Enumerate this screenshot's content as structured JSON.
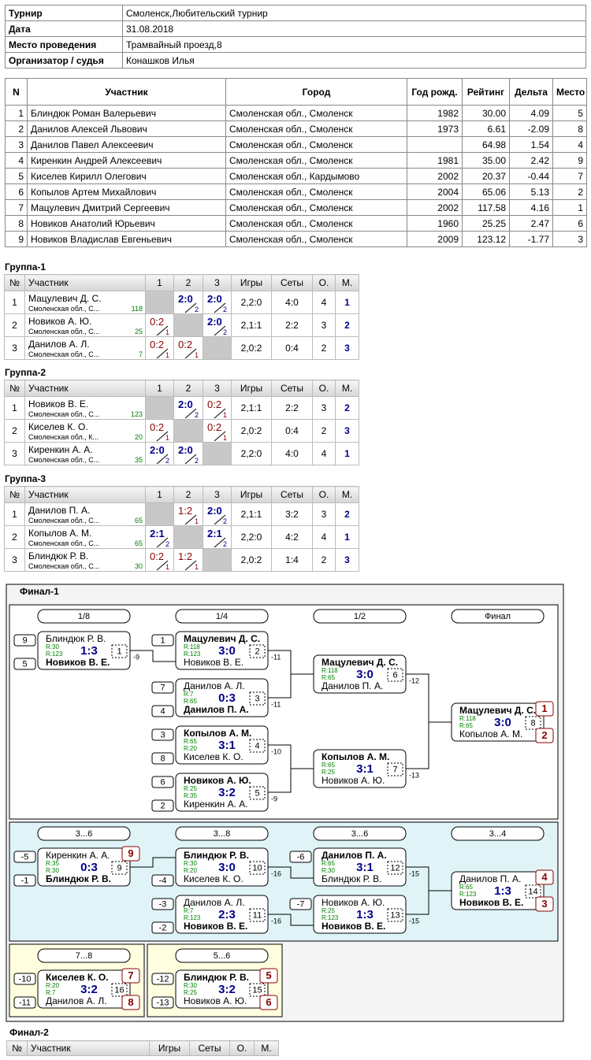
{
  "info": [
    [
      "Турнир",
      "Смоленск,Любительский турнир"
    ],
    [
      "Дата",
      "31.08.2018"
    ],
    [
      "Место проведения",
      "Трамвайный проезд,8"
    ],
    [
      "Организатор / судья",
      "Конашков Илья"
    ]
  ],
  "participants": {
    "headers": [
      "N",
      "Участник",
      "Город",
      "Год рожд.",
      "Рейтинг",
      "Дельта",
      "Место"
    ],
    "rows": [
      [
        1,
        "Блиндюк Роман Валерьевич",
        "Смоленская обл., Смоленск",
        1982,
        "30.00",
        "4.09",
        5
      ],
      [
        2,
        "Данилов Алексей Львович",
        "Смоленская обл., Смоленск",
        1973,
        "6.61",
        "-2.09",
        8
      ],
      [
        3,
        "Данилов Павел Алексеевич",
        "Смоленская обл., Смоленск",
        null,
        "64.98",
        "1.54",
        4
      ],
      [
        4,
        "Киренкин Андрей Алексеевич",
        "Смоленская обл., Смоленск",
        1981,
        "35.00",
        "2.42",
        9
      ],
      [
        5,
        "Киселев Кирилл Олегович",
        "Смоленская обл., Кардымово",
        2002,
        "20.37",
        "-0.44",
        7
      ],
      [
        6,
        "Копылов Артем Михайлович",
        "Смоленская обл., Смоленск",
        2004,
        "65.06",
        "5.13",
        2
      ],
      [
        7,
        "Мацулевич Дмитрий Сергеевич",
        "Смоленская обл., Смоленск",
        2002,
        "117.58",
        "4.16",
        1
      ],
      [
        8,
        "Новиков Анатолий Юрьевич",
        "Смоленская обл., Смоленск",
        1960,
        "25.25",
        "2.47",
        6
      ],
      [
        9,
        "Новиков Владислав Евгеньевич",
        "Смоленская обл., Смоленск",
        2009,
        "123.12",
        "-1.77",
        3
      ]
    ]
  },
  "groups": [
    {
      "title": "Группа-1",
      "headers": [
        "№",
        "Участник",
        "1",
        "2",
        "3",
        "Игры",
        "Сеты",
        "О.",
        "М."
      ],
      "rows": [
        {
          "n": 1,
          "name": "Мацулевич Д. С.",
          "city": "Смоленская обл., С...",
          "rating": 118,
          "cells": [
            null,
            {
              "score": "2:0",
              "pts": 2
            },
            {
              "score": "2:0",
              "pts": 2
            }
          ],
          "games": "2,2:0",
          "sets": "4:0",
          "points": 4,
          "place": 1
        },
        {
          "n": 2,
          "name": "Новиков А. Ю.",
          "city": "Смоленская обл., С...",
          "rating": 25,
          "cells": [
            {
              "score": "0:2",
              "pts": 1
            },
            null,
            {
              "score": "2:0",
              "pts": 2
            }
          ],
          "games": "2,1:1",
          "sets": "2:2",
          "points": 3,
          "place": 2
        },
        {
          "n": 3,
          "name": "Данилов А. Л.",
          "city": "Смоленская обл., С...",
          "rating": 7,
          "cells": [
            {
              "score": "0:2",
              "pts": 1
            },
            {
              "score": "0:2",
              "pts": 1
            },
            null
          ],
          "games": "2,0:2",
          "sets": "0:4",
          "points": 2,
          "place": 3
        }
      ]
    },
    {
      "title": "Группа-2",
      "headers": [
        "№",
        "Участник",
        "1",
        "2",
        "3",
        "Игры",
        "Сеты",
        "О.",
        "М."
      ],
      "rows": [
        {
          "n": 1,
          "name": "Новиков В. Е.",
          "city": "Смоленская обл., С...",
          "rating": 123,
          "cells": [
            null,
            {
              "score": "2:0",
              "pts": 2
            },
            {
              "score": "0:2",
              "pts": 1
            }
          ],
          "games": "2,1:1",
          "sets": "2:2",
          "points": 3,
          "place": 2
        },
        {
          "n": 2,
          "name": "Киселев К. О.",
          "city": "Смоленская обл., К...",
          "rating": 20,
          "cells": [
            {
              "score": "0:2",
              "pts": 1
            },
            null,
            {
              "score": "0:2",
              "pts": 1
            }
          ],
          "games": "2,0:2",
          "sets": "0:4",
          "points": 2,
          "place": 3
        },
        {
          "n": 3,
          "name": "Киренкин А. А.",
          "city": "Смоленская обл., С...",
          "rating": 35,
          "cells": [
            {
              "score": "2:0",
              "pts": 2
            },
            {
              "score": "2:0",
              "pts": 2
            },
            null
          ],
          "games": "2,2:0",
          "sets": "4:0",
          "points": 4,
          "place": 1
        }
      ]
    },
    {
      "title": "Группа-3",
      "headers": [
        "№",
        "Участник",
        "1",
        "2",
        "3",
        "Игры",
        "Сеты",
        "О.",
        "М."
      ],
      "rows": [
        {
          "n": 1,
          "name": "Данилов П. А.",
          "city": "Смоленская обл., С...",
          "rating": 65,
          "cells": [
            null,
            {
              "score": "1:2",
              "pts": 1
            },
            {
              "score": "2:0",
              "pts": 2
            }
          ],
          "games": "2,1:1",
          "sets": "3:2",
          "points": 3,
          "place": 2
        },
        {
          "n": 2,
          "name": "Копылов А. М.",
          "city": "Смоленская обл., С...",
          "rating": 65,
          "cells": [
            {
              "score": "2:1",
              "pts": 2
            },
            null,
            {
              "score": "2:1",
              "pts": 2
            }
          ],
          "games": "2,2:0",
          "sets": "4:2",
          "points": 4,
          "place": 1
        },
        {
          "n": 3,
          "name": "Блиндюк Р. В.",
          "city": "Смоленская обл., С...",
          "rating": 30,
          "cells": [
            {
              "score": "0:2",
              "pts": 1
            },
            {
              "score": "1:2",
              "pts": 1
            },
            null
          ],
          "games": "2,0:2",
          "sets": "1:4",
          "points": 2,
          "place": 3
        }
      ]
    }
  ],
  "bracket": {
    "title": "Финал-1",
    "panels": [
      {
        "rounds": [
          "1/8",
          "1/4",
          "1/2",
          "Финал"
        ],
        "matches": [
          {
            "num": 1,
            "score": "1:3",
            "loser": -9,
            "top": {
              "name": "Блиндюк Р. В.",
              "r": "R:30",
              "seed": 9
            },
            "bottom": {
              "name": "Новиков В. Е.",
              "r": "R:123",
              "seed": 5
            }
          },
          {
            "num": 2,
            "score": "3:0",
            "loser": -11,
            "top": {
              "name": "Мацулевич Д. С.",
              "r": "R:118",
              "seed": 1
            },
            "bottom": {
              "name": "Новиков В. Е.",
              "r": "R:123"
            }
          },
          {
            "num": 3,
            "score": "0:3",
            "loser": -11,
            "top": {
              "name": "Данилов А. Л.",
              "r": "R:7",
              "seed": 7
            },
            "bottom": {
              "name": "Данилов П. А.",
              "r": "R:65",
              "seed": 4
            }
          },
          {
            "num": 4,
            "score": "3:1",
            "loser": -10,
            "top": {
              "name": "Копылов А. М.",
              "r": "R:65",
              "seed": 3
            },
            "bottom": {
              "name": "Киселев К. О.",
              "r": "R:20",
              "seed": 8
            }
          },
          {
            "num": 5,
            "score": "3:2",
            "loser": -9,
            "top": {
              "name": "Новиков А. Ю.",
              "r": "R:25",
              "seed": 6
            },
            "bottom": {
              "name": "Киренкин А. А.",
              "r": "R:35",
              "seed": 2
            }
          },
          {
            "num": 6,
            "score": "3:0",
            "loser": -12,
            "top": {
              "name": "Мацулевич Д. С.",
              "r": "R:118"
            },
            "bottom": {
              "name": "Данилов П. А.",
              "r": "R:65"
            }
          },
          {
            "num": 7,
            "score": "3:1",
            "loser": -13,
            "top": {
              "name": "Копылов А. М.",
              "r": "R:65"
            },
            "bottom": {
              "name": "Новиков А. Ю.",
              "r": "R:25"
            }
          },
          {
            "num": 8,
            "score": "3:0",
            "top": {
              "name": "Мацулевич Д. С.",
              "r": "R:118",
              "place": 1
            },
            "bottom": {
              "name": "Копылов А. М.",
              "r": "R:65",
              "place": 2
            }
          }
        ]
      },
      {
        "rounds": [
          "3...6",
          "3...8",
          "3...6",
          "3...4"
        ],
        "matches": [
          {
            "num": 9,
            "score": "0:3",
            "top": {
              "name": "Киренкин А. А.",
              "r": "R:35",
              "seed": -5,
              "place": 9
            },
            "bottom": {
              "name": "Блиндюк Р. В.",
              "r": "R:30",
              "seed": -1
            }
          },
          {
            "num": 10,
            "score": "3:0",
            "loser": -16,
            "top": {
              "name": "Блиндюк Р. В.",
              "r": "R:30"
            },
            "bottom": {
              "name": "Киселев К. О.",
              "r": "R:20",
              "seed": -4
            }
          },
          {
            "num": 11,
            "score": "2:3",
            "loser": -16,
            "top": {
              "name": "Данилов А. Л.",
              "r": "R:7",
              "seed": -3
            },
            "bottom": {
              "name": "Новиков В. Е.",
              "r": "R:123",
              "seed": -2
            }
          },
          {
            "num": 12,
            "score": "3:1",
            "loser": -15,
            "top": {
              "name": "Данилов П. А.",
              "r": "R:65",
              "seed": -6
            },
            "bottom": {
              "name": "Блиндюк Р. В.",
              "r": "R:30"
            }
          },
          {
            "num": 13,
            "score": "1:3",
            "loser": -15,
            "top": {
              "name": "Новиков А. Ю.",
              "r": "R:25",
              "seed": -7
            },
            "bottom": {
              "name": "Новиков В. Е.",
              "r": "R:123"
            }
          },
          {
            "num": 14,
            "score": "1:3",
            "top": {
              "name": "Данилов П. А.",
              "r": "R:65",
              "place": 4
            },
            "bottom": {
              "name": "Новиков В. Е.",
              "r": "R:123",
              "place": 3
            }
          }
        ]
      },
      {
        "rounds": [
          "7...8"
        ],
        "matches": [
          {
            "num": 16,
            "score": "3:2",
            "top": {
              "name": "Киселев К. О.",
              "r": "R:20",
              "seed": -10,
              "place": 7
            },
            "bottom": {
              "name": "Данилов А. Л.",
              "r": "R:7",
              "seed": -11,
              "place": 8
            }
          }
        ]
      },
      {
        "rounds": [
          "5...6"
        ],
        "matches": [
          {
            "num": 15,
            "score": "3:2",
            "top": {
              "name": "Блиндюк Р. В.",
              "r": "R:30",
              "seed": -12,
              "place": 5
            },
            "bottom": {
              "name": "Новиков А. Ю.",
              "r": "R:25",
              "seed": -13,
              "place": 6
            }
          }
        ]
      }
    ]
  },
  "final2": {
    "title": "Финал-2",
    "headers": [
      "№",
      "Участник",
      "Игры",
      "Сеты",
      "О.",
      "М."
    ]
  }
}
